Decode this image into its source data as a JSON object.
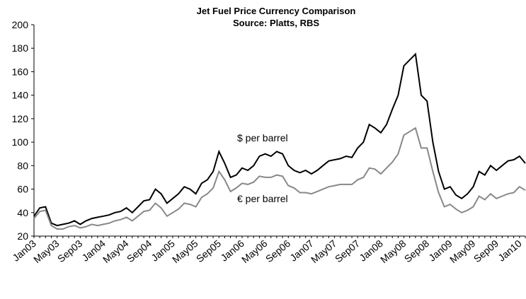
{
  "chart_data": {
    "type": "line",
    "title": "Jet Fuel Price Currency Comparison",
    "subtitle": "Source: Platts, RBS",
    "categories": [
      "Jan03",
      null,
      null,
      null,
      "May03",
      null,
      null,
      null,
      "Sep03",
      null,
      null,
      null,
      "Jan04",
      null,
      null,
      null,
      "May04",
      null,
      null,
      null,
      "Sep04",
      null,
      null,
      null,
      "Jan05",
      null,
      null,
      null,
      "May05",
      null,
      null,
      null,
      "Sep05",
      null,
      null,
      null,
      "Jan06",
      null,
      null,
      null,
      "May06",
      null,
      null,
      null,
      "Sep06",
      null,
      null,
      null,
      "Jan07",
      null,
      null,
      null,
      "May07",
      null,
      null,
      null,
      "Sep07",
      null,
      null,
      null,
      "Jan08",
      null,
      null,
      null,
      "May08",
      null,
      null,
      null,
      "Sep08",
      null,
      null,
      null,
      "Jan09",
      null,
      null,
      null,
      "May09",
      null,
      null,
      null,
      "Sep09",
      null,
      null,
      null,
      "Jan10",
      null
    ],
    "series": [
      {
        "name": "$ per barrel",
        "color": "#000000",
        "values": [
          37,
          44,
          45,
          31,
          29,
          30,
          31,
          33,
          30,
          33,
          35,
          36,
          37,
          38,
          40,
          41,
          44,
          40,
          45,
          50,
          51,
          60,
          56,
          48,
          52,
          56,
          62,
          60,
          56,
          65,
          68,
          75,
          92,
          82,
          70,
          72,
          78,
          76,
          80,
          88,
          90,
          88,
          92,
          90,
          80,
          76,
          74,
          76,
          73,
          76,
          80,
          84,
          85,
          86,
          88,
          87,
          95,
          100,
          115,
          112,
          108,
          115,
          128,
          140,
          165,
          170,
          175,
          140,
          135,
          100,
          75,
          60,
          62,
          55,
          52,
          56,
          62,
          75,
          72,
          80,
          76,
          80,
          84,
          85,
          88,
          82
        ]
      },
      {
        "name": "€ per barrel",
        "color": "#888888",
        "values": [
          35,
          41,
          42,
          29,
          26,
          26,
          28,
          29,
          27,
          28,
          30,
          29,
          30,
          31,
          33,
          34,
          36,
          33,
          37,
          41,
          42,
          48,
          44,
          37,
          40,
          43,
          48,
          47,
          45,
          53,
          56,
          61,
          75,
          68,
          58,
          61,
          65,
          64,
          66,
          71,
          70,
          70,
          72,
          71,
          63,
          61,
          57,
          57,
          56,
          58,
          60,
          62,
          63,
          64,
          64,
          64,
          68,
          70,
          78,
          77,
          73,
          78,
          83,
          90,
          106,
          109,
          112,
          95,
          95,
          75,
          57,
          45,
          47,
          43,
          40,
          42,
          45,
          54,
          51,
          56,
          52,
          54,
          56,
          57,
          62,
          59
        ]
      }
    ],
    "ylim": [
      20,
      200
    ],
    "yticks": [
      20,
      40,
      60,
      80,
      100,
      120,
      140,
      160,
      180,
      200
    ],
    "grid": false
  }
}
